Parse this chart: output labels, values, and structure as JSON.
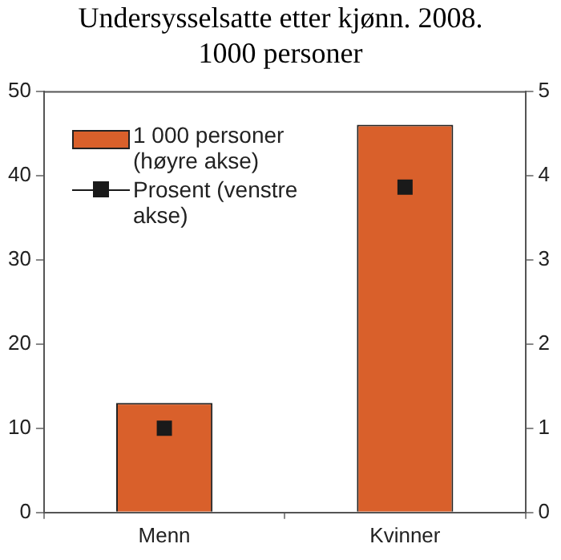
{
  "chart_data": {
    "type": "bar",
    "title": "Undersysselsatte etter kjønn. 2008. 1000 personer",
    "categories": [
      "Menn",
      "Kvinner"
    ],
    "series": [
      {
        "name": "1 000 personer (høyre akse)",
        "axis": "y2",
        "color": "#d9602b",
        "values": [
          1.3,
          4.6
        ]
      },
      {
        "name": "Prosent (venstre akse)",
        "type": "scatter",
        "axis": "y",
        "color": "#1a1a1a",
        "values": [
          10,
          38.6
        ]
      }
    ],
    "ylim": [
      0,
      50
    ],
    "yticks": [
      0,
      10,
      20,
      30,
      40,
      50
    ],
    "y2lim": [
      0,
      5
    ],
    "y2ticks": [
      0,
      1,
      2,
      3,
      4,
      5
    ],
    "grid": false,
    "legend": "top left",
    "marker": "square"
  }
}
